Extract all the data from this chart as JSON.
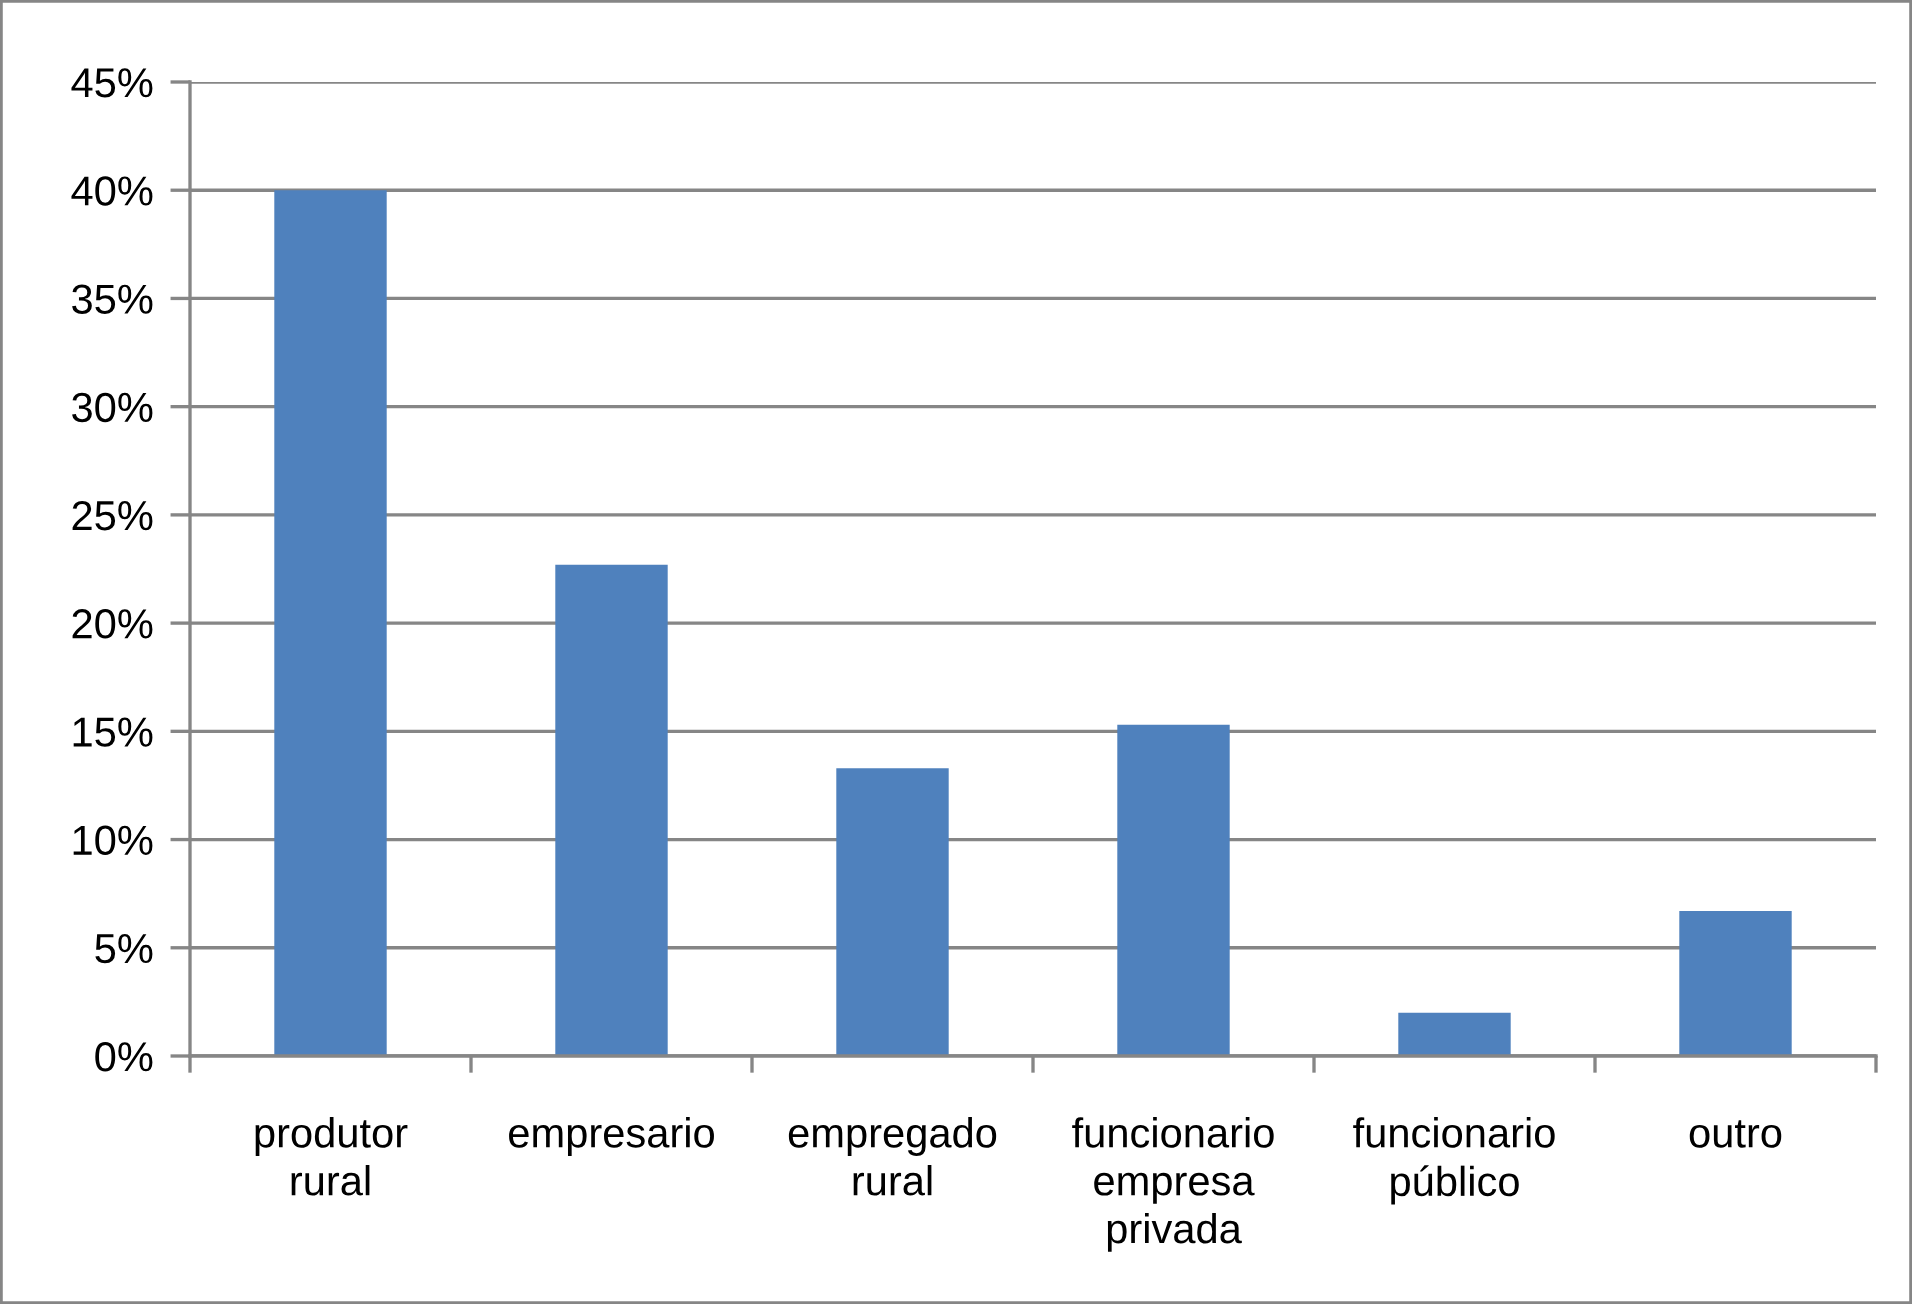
{
  "chart_data": {
    "type": "bar",
    "categories": [
      "produtor\nrural",
      "empresario",
      "empregado\nrural",
      "funcionario\nempresa\nprivada",
      "funcionario\npúblico",
      "outro"
    ],
    "values": [
      40,
      22.7,
      13.3,
      15.3,
      2,
      6.7
    ],
    "color": "#4f81bd",
    "ylim": [
      0,
      45
    ],
    "yticks": [
      {
        "value": 0,
        "label": "0%"
      },
      {
        "value": 5,
        "label": "5%"
      },
      {
        "value": 10,
        "label": "10%"
      },
      {
        "value": 15,
        "label": "15%"
      },
      {
        "value": 20,
        "label": "20%"
      },
      {
        "value": 25,
        "label": "25%"
      },
      {
        "value": 30,
        "label": "30%"
      },
      {
        "value": 35,
        "label": "35%"
      },
      {
        "value": 40,
        "label": "40%"
      },
      {
        "value": 45,
        "label": "45%"
      }
    ],
    "grid": "y"
  }
}
